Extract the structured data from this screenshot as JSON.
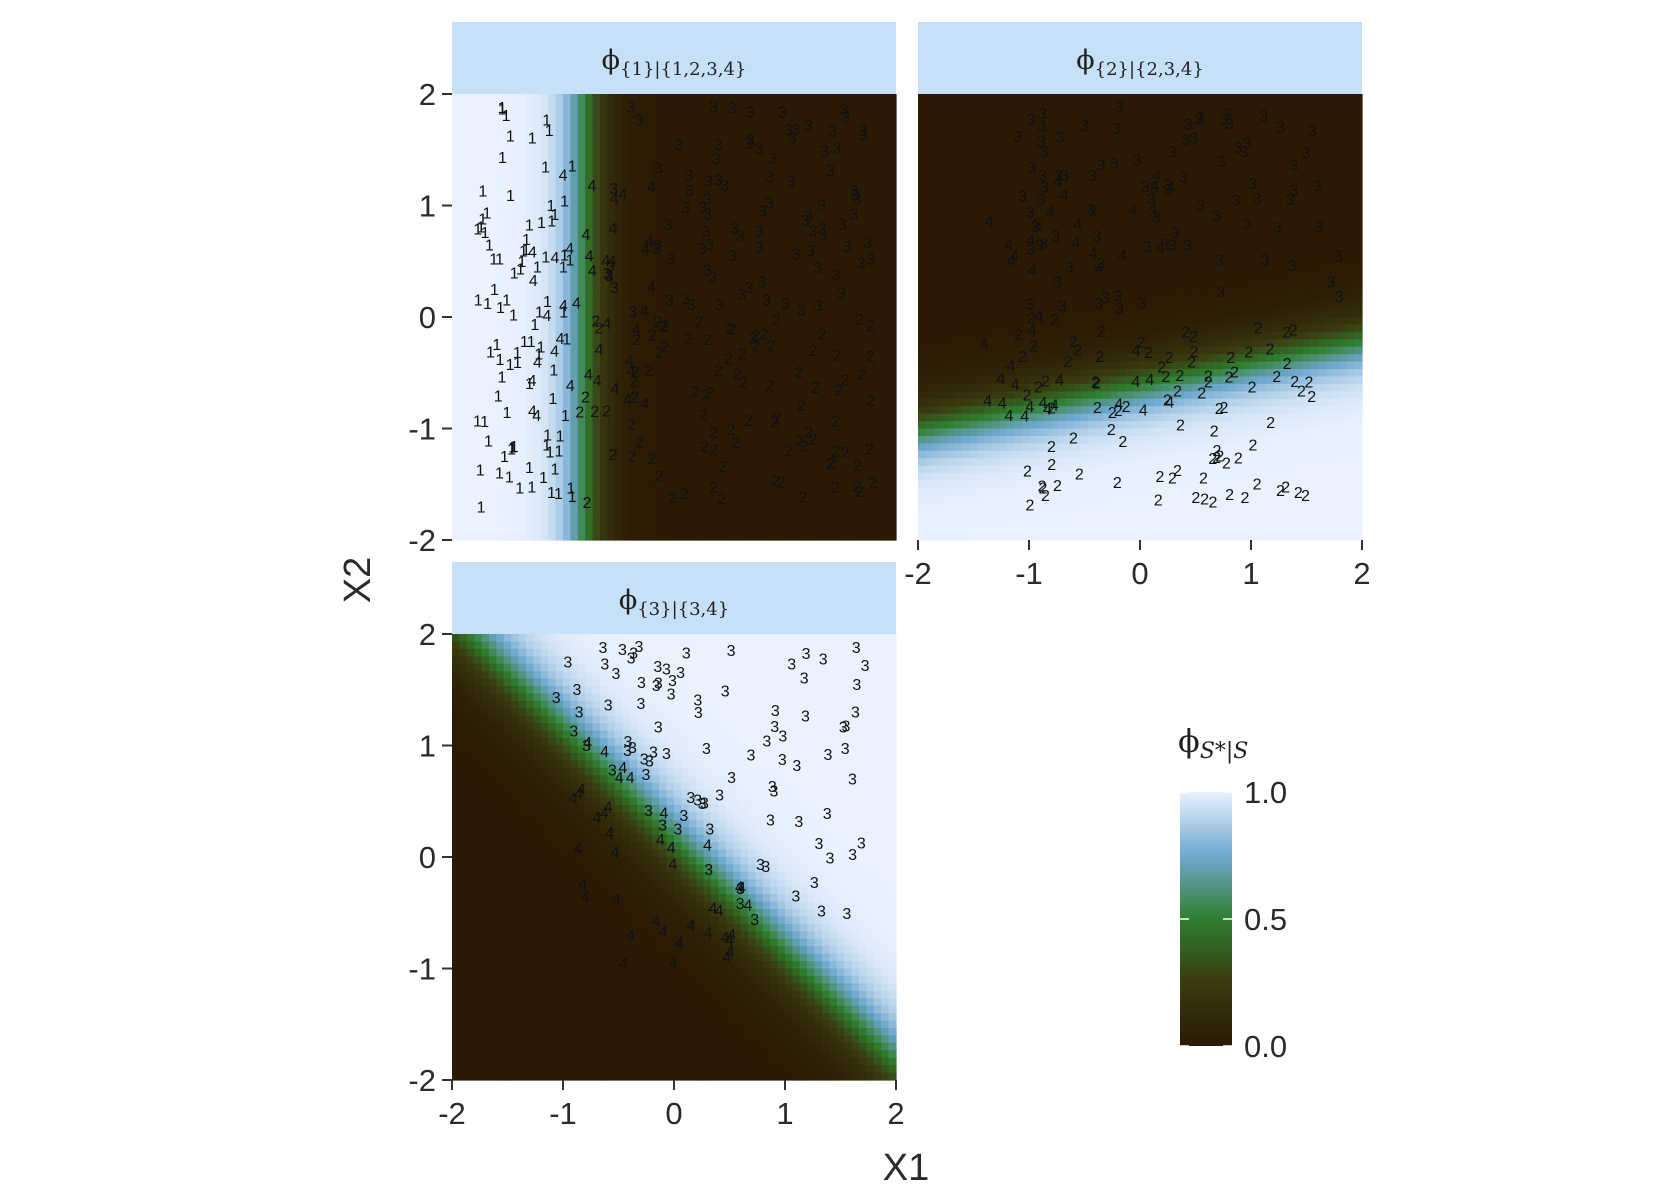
{
  "chart_data": {
    "type": "heatmap",
    "facet_layout": "2x2 grid, bottom-right empty",
    "xlabel": "X1",
    "ylabel": "X2",
    "xlim": [
      -2,
      2
    ],
    "ylim": [
      -2,
      2
    ],
    "x_ticks": [
      "-2",
      "-1",
      "0",
      "1",
      "2"
    ],
    "y_ticks": [
      "-2",
      "-1",
      "0",
      "1",
      "2"
    ],
    "grid": false,
    "colormap": {
      "stops": [
        {
          "value": 0.0,
          "color": "#2b1a05"
        },
        {
          "value": 0.25,
          "color": "#3a3a10"
        },
        {
          "value": 0.5,
          "color": "#2f7f2f"
        },
        {
          "value": 0.75,
          "color": "#6fa8cf"
        },
        {
          "value": 1.0,
          "color": "#eaf2ff"
        }
      ]
    },
    "legend": {
      "title_main": "ϕ",
      "title_sub": "S*|S",
      "ticks": [
        "1.0",
        "0.5",
        "0.0"
      ],
      "tick_values": [
        1.0,
        0.5,
        0.0
      ],
      "placement": "right"
    },
    "strip_color": "#c6e0f7",
    "panels": [
      {
        "id": "p1",
        "strip_main": "ϕ",
        "strip_sub": "{1}|{1,2,3,4}",
        "field": {
          "kind": "threshold_x",
          "center": -0.8,
          "scale": 0.12,
          "note": "value 1 for X1 < -0.8, 0 for X1 > -0.8"
        },
        "show_y_axis": true,
        "show_x_axis": false,
        "point_groups": [
          {
            "label": "1",
            "region": "x in [-1.8,-0.9], y in [-1.7,1.9]",
            "count": 90
          },
          {
            "label": "4",
            "region": "x in [-1.3,-0.2], y in [-0.9,1.3] near boundary",
            "count": 40
          },
          {
            "label": "3",
            "region": "x in [-0.6,1.8], y in [0,1.9]",
            "count": 90
          },
          {
            "label": "2",
            "region": "x in [-0.9,1.8], y in [-1.7,0]",
            "count": 90
          }
        ]
      },
      {
        "id": "p2",
        "strip_main": "ϕ",
        "strip_sub": "{2}|{2,3,4}",
        "field": {
          "kind": "threshold_line",
          "boundary": "X2 = -0.62 + 0.2*X1",
          "scale": 0.15,
          "note": "value 1 below boundary, 0 above"
        },
        "show_y_axis": false,
        "show_x_axis": true,
        "point_groups": [
          {
            "label": "3",
            "region": "x in [-1.1,1.8], y in [0,1.9]",
            "count": 90
          },
          {
            "label": "4",
            "region": "x in [-1.5,0.3], y in [-0.9,1.3]",
            "count": 40
          },
          {
            "label": "2",
            "region": "x in [-1.1,1.8], y in [-1.7,0]",
            "count": 90
          }
        ]
      },
      {
        "id": "p3",
        "strip_main": "ϕ",
        "strip_sub": "{3}|{3,4}",
        "field": {
          "kind": "threshold_line",
          "boundary": "X2 = -X1 + 0.15",
          "scale": 0.22,
          "note": "value 1 above-right of boundary, 0 below-left"
        },
        "show_y_axis": true,
        "show_x_axis": true,
        "point_groups": [
          {
            "label": "3",
            "region": "x in [-1.1,1.8], y in [-0.5,1.9] above diagonal",
            "count": 90
          },
          {
            "label": "4",
            "region": "x in [-1.0,0.7], y in [-1.0,1.3] near diagonal",
            "count": 40
          }
        ]
      }
    ]
  }
}
